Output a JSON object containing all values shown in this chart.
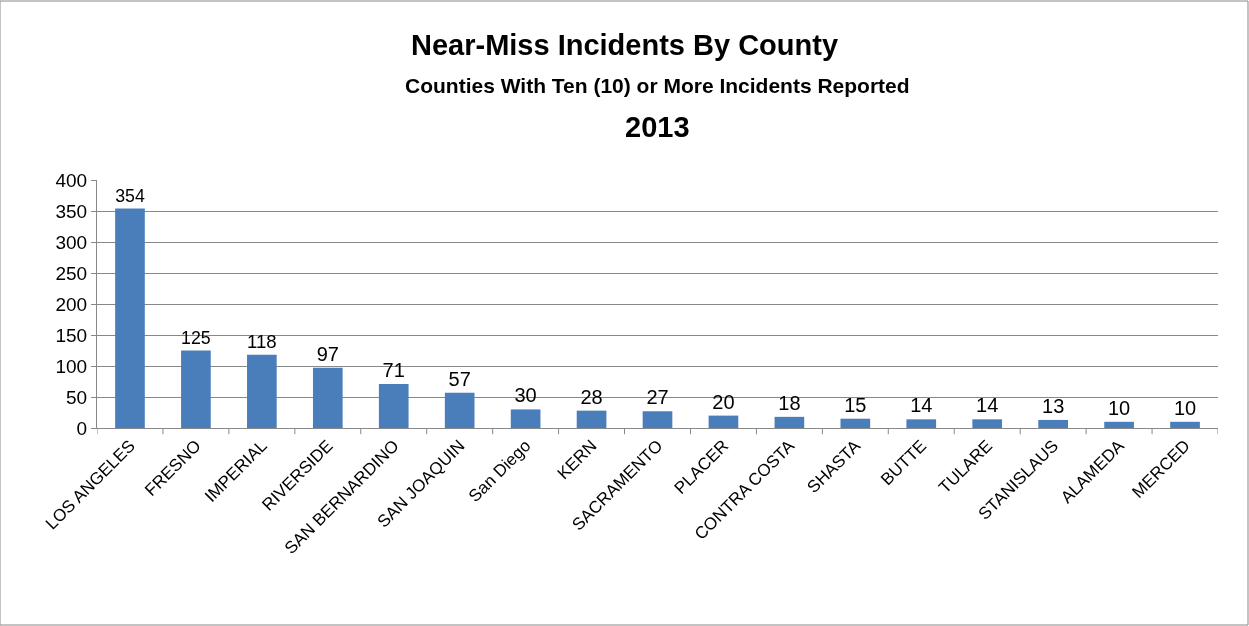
{
  "chart_data": {
    "type": "bar",
    "title": "Near-Miss Incidents By County",
    "subtitle": "Counties With Ten (10) or More Incidents Reported",
    "annotations": [
      "2013"
    ],
    "categories": [
      "LOS ANGELES",
      "FRESNO",
      "IMPERIAL",
      "RIVERSIDE",
      "SAN BERNARDINO",
      "SAN JOAQUIN",
      "San Diego",
      "KERN",
      "SACRAMENTO",
      "PLACER",
      "CONTRA COSTA",
      "SHASTA",
      "BUTTE",
      "TULARE",
      "STANISLAUS",
      "ALAMEDA",
      "MERCED"
    ],
    "values": [
      354,
      125,
      118,
      97,
      71,
      57,
      30,
      28,
      27,
      20,
      18,
      15,
      14,
      14,
      13,
      10,
      10
    ],
    "color": "#4a7ebb",
    "ylim": [
      0,
      400
    ],
    "yticks": [
      0,
      50,
      100,
      150,
      200,
      250,
      300,
      350,
      400
    ],
    "grid": "y",
    "data_labels": true,
    "legend": false
  }
}
